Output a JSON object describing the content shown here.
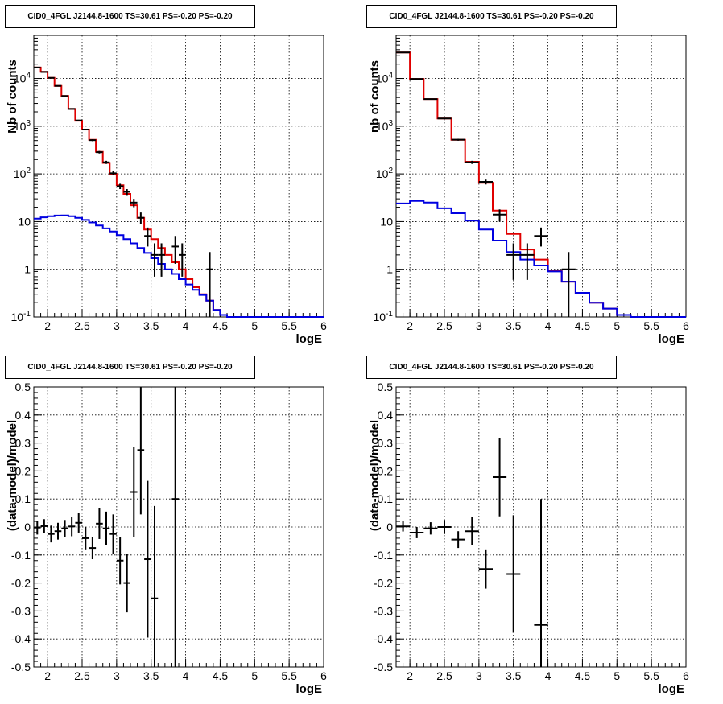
{
  "colors": {
    "data": "#000000",
    "total_model": "#e00000",
    "source_model": "#0000e0",
    "frame": "#000000",
    "grid": "#000000"
  },
  "chart_data": [
    {
      "type": "step",
      "title": "CID0_4FGL J2144.8-1600 TS=30.61 PS=-0.20 PS=-0.20",
      "xlabel": "logE",
      "ylabel": "Nb of counts",
      "xlim": [
        1.8,
        6.0
      ],
      "ylim": [
        0.1,
        80000
      ],
      "log_y": true,
      "grid": true,
      "x_ticks": [
        "2",
        "2.5",
        "3",
        "3.5",
        "4",
        "4.5",
        "5",
        "5.5",
        "6"
      ],
      "y_ticks": [
        "10^-1",
        "1",
        "10",
        "10^2",
        "10^3",
        "10^4"
      ],
      "bin_width": 0.1,
      "bin_edges_start": 1.8,
      "series": [
        {
          "role": "total_model",
          "values": [
            17000,
            13800,
            10300,
            7000,
            4300,
            2300,
            1300,
            850,
            520,
            290,
            170,
            100,
            58,
            38,
            22,
            12,
            6.8,
            4.3,
            2.8,
            2.0,
            1.4,
            1.0,
            0.62,
            0.42,
            0.3,
            0.22,
            0.14,
            0.11,
            0.1,
            0.1,
            0.1,
            0.1,
            0.1,
            0.1,
            0.1,
            0.1,
            0.1,
            0.1,
            0.1,
            0.1,
            0.1,
            0.1
          ]
        },
        {
          "role": "source_model",
          "values": [
            11.5,
            12.3,
            13.0,
            13.4,
            13.5,
            13.0,
            12.0,
            10.8,
            9.6,
            8.3,
            7.2,
            6.2,
            5.2,
            4.3,
            3.5,
            2.8,
            2.2,
            1.7,
            1.3,
            1.0,
            0.8,
            0.62,
            0.48,
            0.37,
            0.29,
            0.22,
            0.14,
            0.11,
            0.1,
            0.1,
            0.1,
            0.1,
            0.1,
            0.1,
            0.1,
            0.1,
            0.1,
            0.1,
            0.1,
            0.1,
            0.1,
            0.1
          ]
        }
      ],
      "points": [
        {
          "x": 1.85,
          "y": 17000,
          "ylo": 16900,
          "yhi": 17100
        },
        {
          "x": 1.95,
          "y": 13700,
          "ylo": 13600,
          "yhi": 13800
        },
        {
          "x": 2.05,
          "y": 10300,
          "ylo": 10200,
          "yhi": 10400
        },
        {
          "x": 2.15,
          "y": 7000,
          "ylo": 6900,
          "yhi": 7100
        },
        {
          "x": 2.25,
          "y": 4300,
          "ylo": 4230,
          "yhi": 4370
        },
        {
          "x": 2.35,
          "y": 2300,
          "ylo": 2250,
          "yhi": 2350
        },
        {
          "x": 2.45,
          "y": 1320,
          "ylo": 1280,
          "yhi": 1360
        },
        {
          "x": 2.55,
          "y": 850,
          "ylo": 820,
          "yhi": 880
        },
        {
          "x": 2.65,
          "y": 510,
          "ylo": 487,
          "yhi": 533
        },
        {
          "x": 2.75,
          "y": 285,
          "ylo": 268,
          "yhi": 302
        },
        {
          "x": 2.85,
          "y": 175,
          "ylo": 162,
          "yhi": 188
        },
        {
          "x": 2.95,
          "y": 103,
          "ylo": 93,
          "yhi": 113
        },
        {
          "x": 3.05,
          "y": 55,
          "ylo": 48,
          "yhi": 62
        },
        {
          "x": 3.15,
          "y": 42,
          "ylo": 36,
          "yhi": 48
        },
        {
          "x": 3.25,
          "y": 25,
          "ylo": 20,
          "yhi": 30
        },
        {
          "x": 3.35,
          "y": 12,
          "ylo": 9,
          "yhi": 15.5
        },
        {
          "x": 3.45,
          "y": 5,
          "ylo": 3,
          "yhi": 7.5
        },
        {
          "x": 3.55,
          "y": 2,
          "ylo": 0.7,
          "yhi": 3.5
        },
        {
          "x": 3.65,
          "y": 2,
          "ylo": 0.7,
          "yhi": 3.5
        },
        {
          "x": 3.85,
          "y": 3,
          "ylo": 1.3,
          "yhi": 5
        },
        {
          "x": 3.95,
          "y": 2,
          "ylo": 0.7,
          "yhi": 3.5
        },
        {
          "x": 4.35,
          "y": 1,
          "ylo": 0.1,
          "yhi": 2.3
        }
      ]
    },
    {
      "type": "step",
      "title": "CID0_4FGL J2144.8-1600 TS=30.61 PS=-0.20 PS=-0.20",
      "xlabel": "logE",
      "ylabel": "nb of counts",
      "xlim": [
        1.8,
        6.0
      ],
      "ylim": [
        0.1,
        80000
      ],
      "log_y": true,
      "grid": true,
      "x_ticks": [
        "2",
        "2.5",
        "3",
        "3.5",
        "4",
        "4.5",
        "5",
        "5.5",
        "6"
      ],
      "y_ticks": [
        "10^-1",
        "1",
        "10",
        "10^2",
        "10^3",
        "10^4"
      ],
      "bin_width": 0.2,
      "bin_edges_start": 1.8,
      "series": [
        {
          "role": "total_model",
          "values": [
            35000,
            9800,
            3700,
            1450,
            520,
            180,
            65,
            17,
            5.5,
            2.6,
            1.6,
            0.95,
            0.55,
            0.32,
            0.2,
            0.15,
            0.11,
            0.1,
            0.1,
            0.1,
            0.1
          ]
        },
        {
          "role": "source_model",
          "values": [
            24,
            27,
            25,
            19,
            15,
            10.5,
            6.8,
            4.0,
            2.3,
            1.6,
            1.2,
            0.9,
            0.55,
            0.32,
            0.2,
            0.15,
            0.11,
            0.1,
            0.1,
            0.1,
            0.1
          ]
        }
      ],
      "points": [
        {
          "x": 1.9,
          "y": 35000,
          "ylo": 34800,
          "yhi": 35200
        },
        {
          "x": 2.1,
          "y": 9800,
          "ylo": 9700,
          "yhi": 9900
        },
        {
          "x": 2.3,
          "y": 3700,
          "ylo": 3640,
          "yhi": 3760
        },
        {
          "x": 2.5,
          "y": 1450,
          "ylo": 1412,
          "yhi": 1488
        },
        {
          "x": 2.7,
          "y": 520,
          "ylo": 497,
          "yhi": 543
        },
        {
          "x": 2.9,
          "y": 175,
          "ylo": 162,
          "yhi": 188
        },
        {
          "x": 3.1,
          "y": 68,
          "ylo": 60,
          "yhi": 76
        },
        {
          "x": 3.3,
          "y": 14,
          "ylo": 10,
          "yhi": 18
        },
        {
          "x": 3.5,
          "y": 2,
          "ylo": 0.6,
          "yhi": 3.5
        },
        {
          "x": 3.7,
          "y": 2,
          "ylo": 0.6,
          "yhi": 3.5
        },
        {
          "x": 3.9,
          "y": 5,
          "ylo": 3,
          "yhi": 7.5
        },
        {
          "x": 4.3,
          "y": 1,
          "ylo": 0.1,
          "yhi": 2.3
        }
      ]
    },
    {
      "type": "scatter",
      "title": "CID0_4FGL J2144.8-1600 TS=30.61 PS=-0.20 PS=-0.20",
      "xlabel": "logE",
      "ylabel": "(data-model)/model",
      "xlim": [
        1.8,
        6.0
      ],
      "ylim": [
        -0.5,
        0.5
      ],
      "log_y": false,
      "grid": true,
      "x_ticks": [
        "2",
        "2.5",
        "3",
        "3.5",
        "4",
        "4.5",
        "5",
        "5.5",
        "6"
      ],
      "y_ticks": [
        "-0.5",
        "-0.4",
        "-0.3",
        "-0.2",
        "-0.1",
        "0",
        "0.1",
        "0.2",
        "0.3",
        "0.4",
        "0.5"
      ],
      "x_half_width": 0.05,
      "points": [
        {
          "x": 1.85,
          "y": -0.002,
          "err": 0.025
        },
        {
          "x": 1.95,
          "y": 0.003,
          "err": 0.025
        },
        {
          "x": 2.05,
          "y": -0.025,
          "err": 0.03
        },
        {
          "x": 2.15,
          "y": -0.015,
          "err": 0.03
        },
        {
          "x": 2.25,
          "y": -0.005,
          "err": 0.03
        },
        {
          "x": 2.35,
          "y": 0.002,
          "err": 0.035
        },
        {
          "x": 2.45,
          "y": 0.015,
          "err": 0.035
        },
        {
          "x": 2.55,
          "y": -0.04,
          "err": 0.04
        },
        {
          "x": 2.65,
          "y": -0.075,
          "err": 0.04
        },
        {
          "x": 2.75,
          "y": 0.012,
          "err": 0.055
        },
        {
          "x": 2.85,
          "y": -0.005,
          "err": 0.06
        },
        {
          "x": 2.95,
          "y": -0.025,
          "err": 0.07
        },
        {
          "x": 3.05,
          "y": -0.12,
          "err": 0.085
        },
        {
          "x": 3.15,
          "y": -0.2,
          "err": 0.105
        },
        {
          "x": 3.25,
          "y": 0.125,
          "err": 0.16
        },
        {
          "x": 3.35,
          "y": 0.275,
          "err": 0.23
        },
        {
          "x": 3.45,
          "y": -0.115,
          "err": 0.28
        },
        {
          "x": 3.55,
          "y": -0.255,
          "err": 0.33
        },
        {
          "x": 3.85,
          "y": 0.1,
          "err": 0.6
        }
      ]
    },
    {
      "type": "scatter",
      "title": "CID0_4FGL J2144.8-1600 TS=30.61 PS=-0.20 PS=-0.20",
      "xlabel": "logE",
      "ylabel": "(data-model)/model",
      "xlim": [
        1.8,
        6.0
      ],
      "ylim": [
        -0.5,
        0.5
      ],
      "log_y": false,
      "grid": true,
      "x_ticks": [
        "2",
        "2.5",
        "3",
        "3.5",
        "4",
        "4.5",
        "5",
        "5.5",
        "6"
      ],
      "y_ticks": [
        "-0.5",
        "-0.4",
        "-0.3",
        "-0.2",
        "-0.1",
        "0",
        "0.1",
        "0.2",
        "0.3",
        "0.4",
        "0.5"
      ],
      "x_half_width": 0.1,
      "points": [
        {
          "x": 1.9,
          "y": 0.002,
          "err": 0.018
        },
        {
          "x": 2.1,
          "y": -0.02,
          "err": 0.02
        },
        {
          "x": 2.3,
          "y": -0.005,
          "err": 0.022
        },
        {
          "x": 2.5,
          "y": 0.0,
          "err": 0.025
        },
        {
          "x": 2.7,
          "y": -0.045,
          "err": 0.03
        },
        {
          "x": 2.9,
          "y": -0.015,
          "err": 0.05
        },
        {
          "x": 3.1,
          "y": -0.15,
          "err": 0.07
        },
        {
          "x": 3.3,
          "y": 0.178,
          "err": 0.14
        },
        {
          "x": 3.5,
          "y": -0.168,
          "err": 0.21
        },
        {
          "x": 3.9,
          "y": -0.35,
          "err": 0.45
        }
      ]
    }
  ]
}
